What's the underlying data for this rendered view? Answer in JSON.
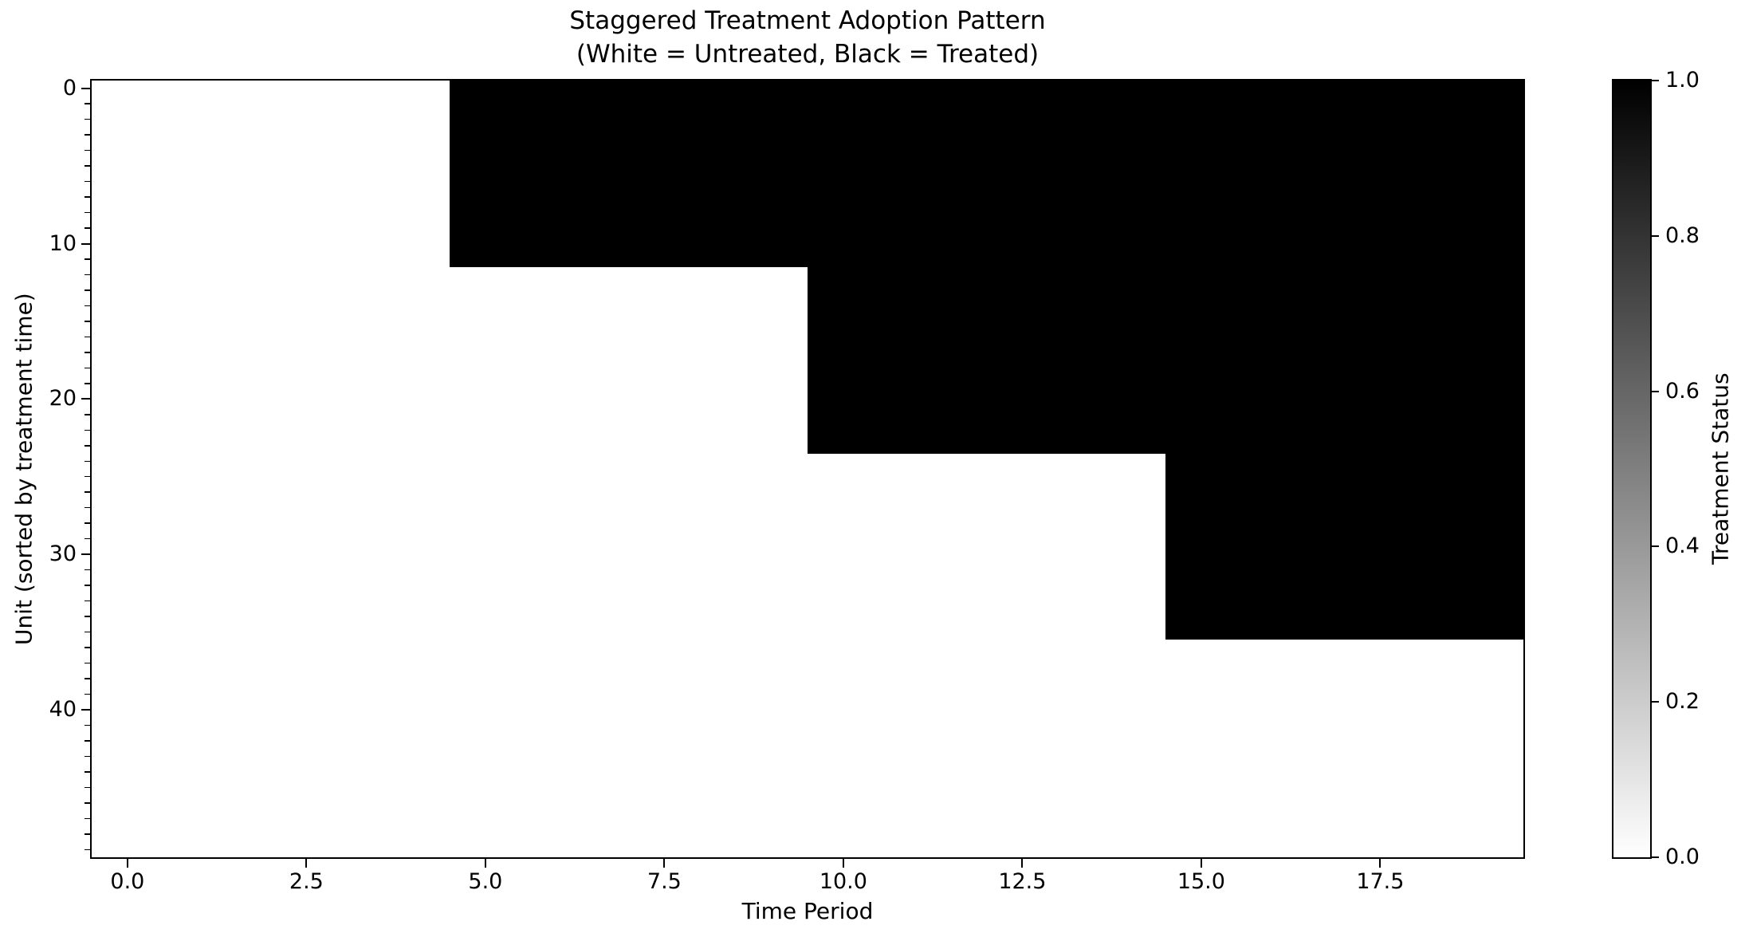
{
  "title": {
    "line1": "Staggered Treatment Adoption Pattern",
    "line2": "(White = Untreated, Black = Treated)"
  },
  "axes": {
    "xlabel": "Time Period",
    "ylabel": "Unit (sorted by treatment time)"
  },
  "colorbar_label": "Treatment Status",
  "chart_data": {
    "type": "heatmap",
    "title": "Staggered Treatment Adoption Pattern\n(White = Untreated, Black = Treated)",
    "xlabel": "Time Period",
    "ylabel": "Unit (sorted by treatment time)",
    "n_units": 50,
    "n_periods": 20,
    "xlim": [
      -0.5,
      19.5
    ],
    "ylim": [
      49.5,
      -0.5
    ],
    "x_ticks": [
      0.0,
      2.5,
      5.0,
      7.5,
      10.0,
      12.5,
      15.0,
      17.5
    ],
    "y_ticks": [
      0,
      10,
      20,
      30,
      40
    ],
    "y_minor_tick_step": 1,
    "grid": false,
    "colors": {
      "untreated": "#ffffff",
      "treated": "#000000"
    },
    "treatment_groups": [
      {
        "row_start": 0,
        "row_end": 11,
        "adoption_time": 5
      },
      {
        "row_start": 12,
        "row_end": 23,
        "adoption_time": 10
      },
      {
        "row_start": 24,
        "row_end": 35,
        "adoption_time": 15
      },
      {
        "row_start": 36,
        "row_end": 49,
        "adoption_time": null
      }
    ],
    "colorbar": {
      "label": "Treatment Status",
      "ticks": [
        1.0,
        0.8,
        0.6,
        0.4,
        0.2,
        0.0
      ],
      "range": [
        0.0,
        1.0
      ],
      "top_color": "#000000",
      "bottom_color": "#ffffff",
      "position": "right"
    }
  }
}
